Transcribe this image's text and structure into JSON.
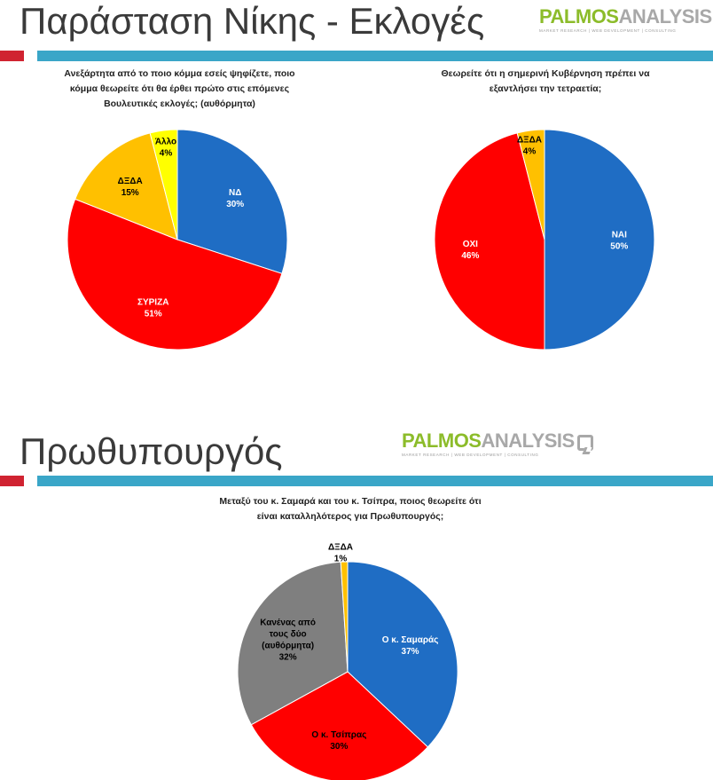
{
  "slide1": {
    "title": "Παράσταση Νίκης - Εκλογές",
    "logo": {
      "part1": "PALMOS",
      "part2": "ANALYSIS",
      "tagline": "MARKET RESEARCH | WEB DEVELOPMENT | CONSULTING"
    }
  },
  "slide2": {
    "title": "Πρωθυπουργός",
    "logo": {
      "part1": "PALMOS",
      "part2": "ANALYSIS",
      "tagline": "MARKET RESEARCH | WEB DEVELOPMENT | CONSULTING"
    }
  },
  "chart_data": [
    {
      "type": "pie",
      "title": "Ανεξάρτητα από το ποιο κόμμα εσείς ψηφίζετε, ποιο κόμμα θεωρείτε ότι θα έρθει πρώτο στις επόμενες Βουλευτικές εκλογές; (αυθόρμητα)",
      "title_lines": [
        "Ανεξάρτητα από το ποιο κόμμα εσείς ψηφίζετε, ποιο",
        "κόμμα θεωρείτε ότι θα έρθει πρώτο στις επόμενες",
        "Βουλευτικές εκλογές; (αυθόρμητα)"
      ],
      "slices": [
        {
          "label": "ΝΔ",
          "value": 30,
          "value_label": "30%",
          "color": "#1f6dc4",
          "text_color": "#ffffff"
        },
        {
          "label": "ΣΥΡΙΖΑ",
          "value": 51,
          "value_label": "51%",
          "color": "#ff0000",
          "text_color": "#ffffff"
        },
        {
          "label": "ΔΞΔΑ",
          "value": 15,
          "value_label": "15%",
          "color": "#ffc000",
          "text_color": "#000000"
        },
        {
          "label": "Άλλο",
          "value": 4,
          "value_label": "4%",
          "color": "#ffff00",
          "text_color": "#000000"
        }
      ]
    },
    {
      "type": "pie",
      "title": "Θεωρείτε ότι η σημερινή Κυβέρνηση πρέπει να εξαντλήσει την τετραετία;",
      "title_lines": [
        "Θεωρείτε ότι η σημερινή Κυβέρνηση πρέπει να",
        "εξαντλήσει την τετραετία;"
      ],
      "slices": [
        {
          "label": "ΝΑΙ",
          "value": 50,
          "value_label": "50%",
          "color": "#1f6dc4",
          "text_color": "#ffffff"
        },
        {
          "label": "ΟΧΙ",
          "value": 46,
          "value_label": "46%",
          "color": "#ff0000",
          "text_color": "#ffffff"
        },
        {
          "label": "ΔΞΔΑ",
          "value": 4,
          "value_label": "4%",
          "color": "#ffc000",
          "text_color": "#000000"
        }
      ]
    },
    {
      "type": "pie",
      "title": "Μεταξύ του κ. Σαμαρά και του κ. Τσίπρα, ποιος θεωρείτε ότι είναι καταλληλότερος για Πρωθυπουργός;",
      "title_lines": [
        "Μεταξύ του κ. Σαμαρά και του κ. Τσίπρα, ποιος θεωρείτε ότι",
        "είναι καταλληλότερος για Πρωθυπουργός;"
      ],
      "slices": [
        {
          "label": "Ο κ. Σαμαράς",
          "value": 37,
          "value_label": "37%",
          "color": "#1f6dc4",
          "text_color": "#ffffff"
        },
        {
          "label": "Ο κ. Τσίπρας",
          "value": 30,
          "value_label": "30%",
          "color": "#ff0000",
          "text_color": "#000000"
        },
        {
          "label": "Κανένας από τους δύο (αυθόρμητα)",
          "label_lines": [
            "Κανένας από",
            "τους δύο",
            "(αυθόρμητα)"
          ],
          "value": 32,
          "value_label": "32%",
          "color": "#7f7f7f",
          "text_color": "#000000"
        },
        {
          "label": "ΔΞΔΑ",
          "value": 1,
          "value_label": "1%",
          "color": "#ffc000",
          "text_color": "#000000"
        }
      ]
    }
  ]
}
